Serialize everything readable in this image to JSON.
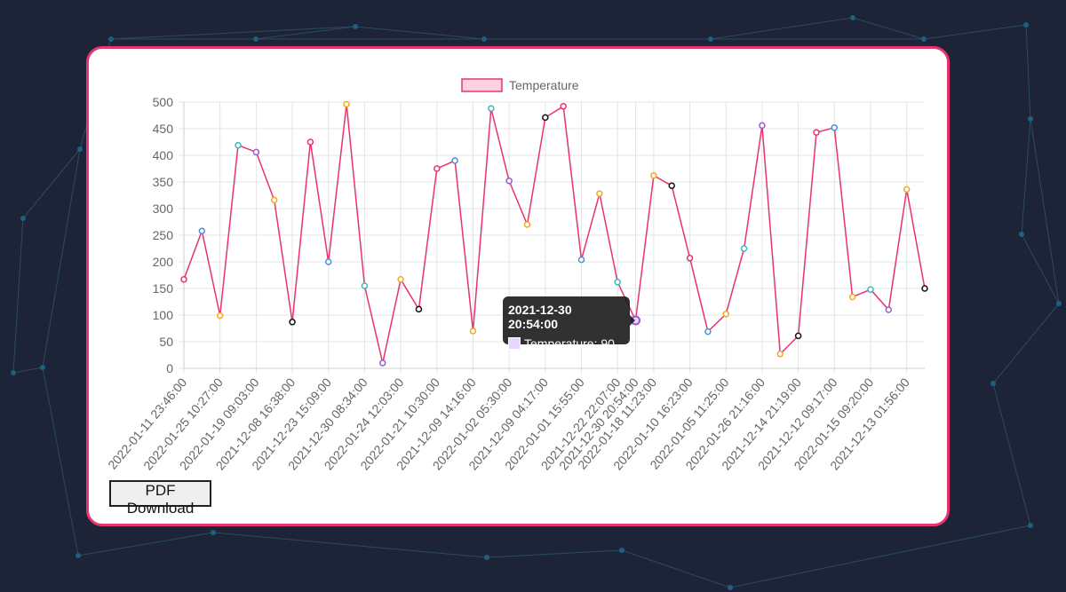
{
  "page": {
    "button_label": "PDF Download"
  },
  "tooltip": {
    "title": "2021-12-30 20:54:00",
    "label": "Temperature: 90"
  },
  "chart_data": {
    "type": "line",
    "legend": "Temperature",
    "legend_position": "top",
    "grid": true,
    "ylim": [
      0,
      500
    ],
    "yticks": [
      0,
      50,
      100,
      150,
      200,
      250,
      300,
      350,
      400,
      450,
      500
    ],
    "line_color": "#e8336d",
    "x": [
      "2022-01-11 23:46:00",
      "",
      "2022-01-25 10:27:00",
      "",
      "2022-01-19 09:03:00",
      "",
      "2021-12-08 16:38:00",
      "",
      "2021-12-23 15:09:00",
      "",
      "2021-12-30 08:34:00",
      "",
      "2022-01-24 12:03:00",
      "",
      "2022-01-21 10:30:00",
      "",
      "2021-12-09 14:16:00",
      "",
      "2022-01-02 05:30:00",
      "",
      "2021-12-09 04:17:00",
      "",
      "2022-01-01 15:55:00",
      "",
      "2021-12-22 22:07:00",
      "2021-12-30 20:54:00",
      "2022-01-18 11:23:00",
      "",
      "2022-01-10 16:23:00",
      "",
      "2022-01-05 11:25:00",
      "",
      "2022-01-26 21:16:00",
      "",
      "2021-12-14 21:19:00",
      "",
      "2021-12-12 09:17:00",
      "",
      "2022-01-15 09:20:00",
      "",
      "2021-12-13 01:56:00",
      ""
    ],
    "values": [
      167,
      258,
      99,
      419,
      406,
      316,
      87,
      425,
      200,
      496,
      155,
      10,
      167,
      111,
      375,
      390,
      70,
      488,
      352,
      270,
      471,
      492,
      204,
      328,
      162,
      90,
      362,
      343,
      207,
      69,
      102,
      225,
      456,
      27,
      61,
      443,
      452,
      134,
      148,
      110,
      336,
      150
    ],
    "point_colors": [
      "#e8336d",
      "#4a90d9",
      "#f5a623",
      "#3fb6c0",
      "#9b59d0",
      "#f5a623",
      "#111111",
      "#e8336d",
      "#4a90d9",
      "#f5a623",
      "#3fb6c0",
      "#9b59d0",
      "#f5a623",
      "#111111",
      "#e8336d",
      "#4a90d9",
      "#f5a623",
      "#3fb6c0",
      "#9b59d0",
      "#f5a623",
      "#111111",
      "#e8336d",
      "#4a90d9",
      "#f5a623",
      "#3fb6c0",
      "#9b59d0",
      "#f5a623",
      "#111111",
      "#e8336d",
      "#4a90d9",
      "#f5a623",
      "#3fb6c0",
      "#9b59d0",
      "#f5a623",
      "#111111",
      "#e8336d",
      "#4a90d9",
      "#f5a623",
      "#3fb6c0",
      "#9b59d0",
      "#f5a623",
      "#111111"
    ],
    "active_index": 25
  }
}
